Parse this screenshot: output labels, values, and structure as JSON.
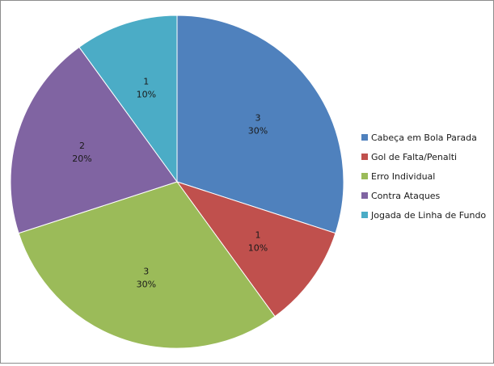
{
  "chart_data": {
    "type": "pie",
    "categories": [
      "Cabeça em Bola Parada",
      "Gol de Falta/Penalti",
      "Erro Individual",
      "Contra Ataques",
      "Jogada de Linha de Fundo"
    ],
    "values": [
      3,
      1,
      3,
      2,
      1
    ],
    "percent_labels": [
      "30%",
      "10%",
      "30%",
      "20%",
      "10%"
    ],
    "value_labels": [
      "3",
      "1",
      "3",
      "2",
      "1"
    ],
    "colors": [
      "#4F81BD",
      "#C0504D",
      "#9BBB59",
      "#8064A2",
      "#4BACC6"
    ],
    "start_angle": "12 o'clock",
    "direction": "clockwise",
    "legend_position": "right"
  }
}
